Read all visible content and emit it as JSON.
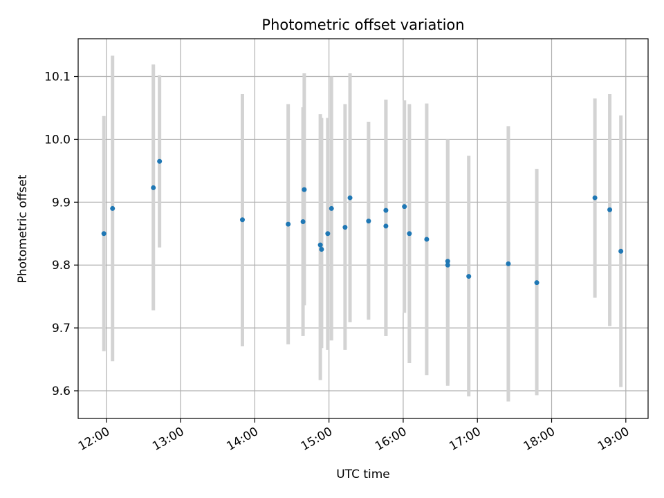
{
  "chart_data": {
    "type": "scatter",
    "title": "Photometric offset variation",
    "xlabel": "UTC time",
    "ylabel": "Photometric offset",
    "x_tick_labels": [
      "12:00",
      "13:00",
      "14:00",
      "15:00",
      "16:00",
      "17:00",
      "18:00",
      "19:00"
    ],
    "x_ticks_hours": [
      12,
      13,
      14,
      15,
      16,
      17,
      18,
      19
    ],
    "y_ticks": [
      9.6,
      9.7,
      9.8,
      9.9,
      10.0,
      10.1
    ],
    "y_tick_labels": [
      "9.6",
      "9.7",
      "9.8",
      "9.9",
      "10.0",
      "10.1"
    ],
    "xlim_hours": [
      11.62,
      19.3
    ],
    "ylim": [
      9.556,
      10.16
    ],
    "grid": true,
    "marker_color": "#1f77b4",
    "errorbar_color": "#d3d3d3",
    "points": [
      {
        "time": "11:58",
        "y": 9.85,
        "low": 9.663,
        "high": 10.037
      },
      {
        "time": "12:05",
        "y": 9.89,
        "low": 9.647,
        "high": 10.133
      },
      {
        "time": "12:38",
        "y": 9.923,
        "low": 9.728,
        "high": 10.119
      },
      {
        "time": "12:43",
        "y": 9.965,
        "low": 9.828,
        "high": 10.102
      },
      {
        "time": "13:50",
        "y": 9.872,
        "low": 9.671,
        "high": 10.072
      },
      {
        "time": "14:27",
        "y": 9.865,
        "low": 9.674,
        "high": 10.056
      },
      {
        "time": "14:39",
        "y": 9.869,
        "low": 9.687,
        "high": 10.051
      },
      {
        "time": "14:40",
        "y": 9.92,
        "low": 9.736,
        "high": 10.105
      },
      {
        "time": "14:53",
        "y": 9.832,
        "low": 9.617,
        "high": 10.04
      },
      {
        "time": "14:54",
        "y": 9.825,
        "low": 9.668,
        "high": 10.034
      },
      {
        "time": "14:59",
        "y": 9.85,
        "low": 9.665,
        "high": 10.034
      },
      {
        "time": "15:02",
        "y": 9.89,
        "low": 9.68,
        "high": 10.1
      },
      {
        "time": "15:13",
        "y": 9.86,
        "low": 9.665,
        "high": 10.056
      },
      {
        "time": "15:17",
        "y": 9.907,
        "low": 9.709,
        "high": 10.105
      },
      {
        "time": "15:32",
        "y": 9.87,
        "low": 9.713,
        "high": 10.028
      },
      {
        "time": "15:46",
        "y": 9.887,
        "low": 9.687,
        "high": 10.063
      },
      {
        "time": "15:46",
        "y": 9.862,
        "low": 9.687,
        "high": 10.063
      },
      {
        "time": "16:01",
        "y": 9.893,
        "low": 9.724,
        "high": 10.062
      },
      {
        "time": "16:05",
        "y": 9.85,
        "low": 9.644,
        "high": 10.056
      },
      {
        "time": "16:19",
        "y": 9.841,
        "low": 9.625,
        "high": 10.057
      },
      {
        "time": "16:36",
        "y": 9.806,
        "low": 9.612,
        "high": 10.0
      },
      {
        "time": "16:36",
        "y": 9.8,
        "low": 9.608,
        "high": 10.0
      },
      {
        "time": "16:53",
        "y": 9.782,
        "low": 9.591,
        "high": 9.974
      },
      {
        "time": "17:25",
        "y": 9.802,
        "low": 9.583,
        "high": 10.021
      },
      {
        "time": "17:48",
        "y": 9.772,
        "low": 9.593,
        "high": 9.953
      },
      {
        "time": "18:35",
        "y": 9.907,
        "low": 9.748,
        "high": 10.065
      },
      {
        "time": "18:47",
        "y": 9.888,
        "low": 9.703,
        "high": 10.072
      },
      {
        "time": "18:56",
        "y": 9.822,
        "low": 9.606,
        "high": 10.038
      }
    ]
  }
}
